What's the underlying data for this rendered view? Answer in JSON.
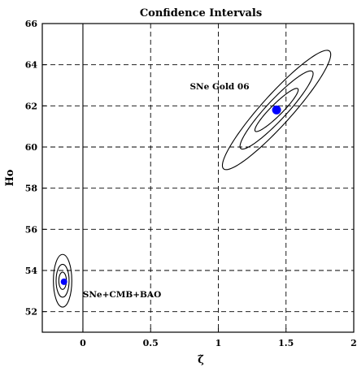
{
  "chart_data": {
    "type": "scatter",
    "title": "Confidence Intervals",
    "xlabel": "ζ̃",
    "ylabel": "Ho",
    "xlim": [
      -0.3,
      2.0
    ],
    "ylim": [
      51.0,
      66.0
    ],
    "x_ticks": [
      0,
      0.5,
      1,
      1.5,
      2
    ],
    "x_tick_labels": [
      "0",
      "0.5",
      "1",
      "1.5",
      "2"
    ],
    "y_ticks": [
      52,
      54,
      56,
      58,
      60,
      62,
      64,
      66
    ],
    "y_tick_labels": [
      "52",
      "54",
      "56",
      "58",
      "60",
      "62",
      "64",
      "66"
    ],
    "grid": true,
    "best_fit_color": "#0000ff",
    "series": [
      {
        "name": "SNe Gold 06",
        "best_fit": {
          "x": 1.43,
          "y": 61.8
        },
        "contours": [
          {
            "cx": 1.43,
            "cy": 61.8,
            "a": 0.16,
            "b": 0.014,
            "angle_deg": 88.6,
            "rx_major_y": 1.05,
            "minor_x": 0.16
          },
          {
            "cx": 1.43,
            "cy": 61.8,
            "a": 0.27,
            "b": 0.025,
            "angle_deg": 88.6,
            "rx_major_y": 1.9,
            "minor_x": 0.27
          },
          {
            "cx": 1.43,
            "cy": 61.8,
            "a": 0.4,
            "b": 0.037,
            "angle_deg": 88.6,
            "rx_major_y": 2.9,
            "minor_x": 0.4
          }
        ]
      },
      {
        "name": "SNe+CMB+BAO",
        "best_fit": {
          "x": -0.14,
          "y": 53.45
        },
        "contours": [
          {
            "cx": -0.15,
            "cy": 53.5,
            "semi_x": 0.028,
            "semi_y": 0.42
          },
          {
            "cx": -0.15,
            "cy": 53.5,
            "semi_x": 0.048,
            "semi_y": 0.8
          },
          {
            "cx": -0.15,
            "cy": 53.5,
            "semi_x": 0.068,
            "semi_y": 1.28
          }
        ]
      }
    ]
  }
}
